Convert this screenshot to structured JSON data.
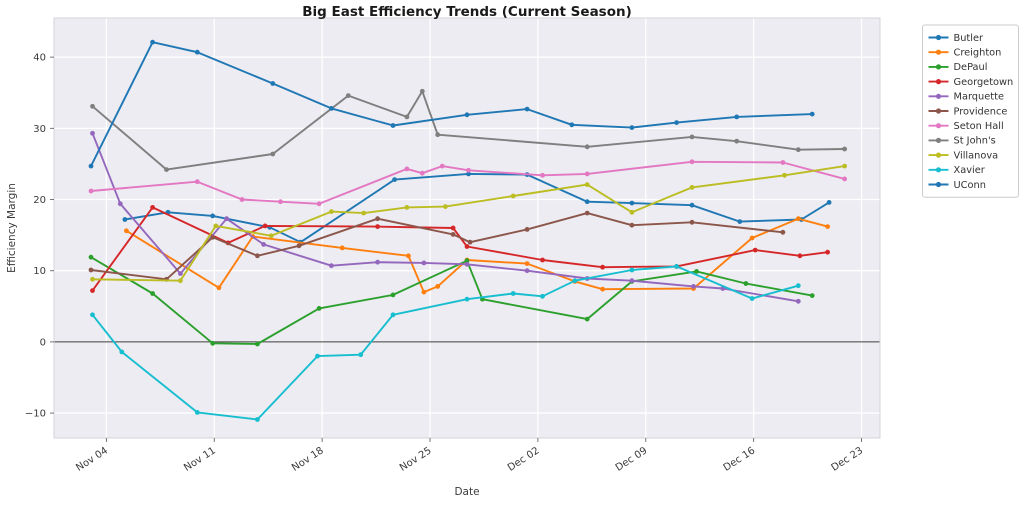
{
  "chart_data": {
    "type": "line",
    "title": "Big East Efficiency Trends (Current Season)",
    "xlabel": "Date",
    "ylabel": "Efficiency Margin",
    "legend_position": "outside-right",
    "grid": true,
    "zero_line": true,
    "xlim": [
      -2.4,
      51.2
    ],
    "ylim": [
      -13.5,
      45.5
    ],
    "x_unit_note": "x = days since Nov 03",
    "x_ticks": [
      {
        "day": 1,
        "label": "Nov 04"
      },
      {
        "day": 8,
        "label": "Nov 11"
      },
      {
        "day": 15,
        "label": "Nov 18"
      },
      {
        "day": 22,
        "label": "Nov 25"
      },
      {
        "day": 29,
        "label": "Dec 02"
      },
      {
        "day": 36,
        "label": "Dec 09"
      },
      {
        "day": 43,
        "label": "Dec 16"
      },
      {
        "day": 50,
        "label": "Dec 23"
      }
    ],
    "y_ticks": [
      {
        "value": -10,
        "label": "−10"
      },
      {
        "value": 0,
        "label": "0"
      },
      {
        "value": 10,
        "label": "10"
      },
      {
        "value": 20,
        "label": "20"
      },
      {
        "value": 30,
        "label": "30"
      },
      {
        "value": 40,
        "label": "40"
      }
    ],
    "style": {
      "plot_bg": "#ececf2",
      "grid_color": "#ffffff",
      "zero_line_color": "#3a3a3a",
      "border_color": "#d4d4dc",
      "legend_bg": "#ffffff",
      "legend_border": "#cccccc"
    },
    "series": [
      {
        "name": "Butler",
        "color": "#1f77b4",
        "points": [
          [
            2.2,
            17.2
          ],
          [
            5,
            18.2
          ],
          [
            7.9,
            17.7
          ],
          [
            11.6,
            16.1
          ],
          [
            13.6,
            14.0
          ],
          [
            19.7,
            22.8
          ],
          [
            24.5,
            23.6
          ],
          [
            28.3,
            23.5
          ],
          [
            32.2,
            19.7
          ],
          [
            35.1,
            19.5
          ],
          [
            39,
            19.2
          ],
          [
            42.1,
            16.9
          ],
          [
            46.1,
            17.2
          ],
          [
            47.9,
            19.6
          ]
        ]
      },
      {
        "name": "Creighton",
        "color": "#ff7f0e",
        "points": [
          [
            2.3,
            15.6
          ],
          [
            8.3,
            7.6
          ],
          [
            10.5,
            14.8
          ],
          [
            16.3,
            13.2
          ],
          [
            20.6,
            12.1
          ],
          [
            21.6,
            7.0
          ],
          [
            22.5,
            7.8
          ],
          [
            24.4,
            11.5
          ],
          [
            28.3,
            11.0
          ],
          [
            31.4,
            8.5
          ],
          [
            33.2,
            7.4
          ],
          [
            39.1,
            7.5
          ],
          [
            42.9,
            14.6
          ],
          [
            45.9,
            17.3
          ],
          [
            47.8,
            16.2
          ]
        ]
      },
      {
        "name": "DePaul",
        "color": "#2ca02c",
        "points": [
          [
            0,
            11.9
          ],
          [
            4,
            6.8
          ],
          [
            7.9,
            -0.2
          ],
          [
            10.8,
            -0.3
          ],
          [
            14.8,
            4.7
          ],
          [
            19.6,
            6.6
          ],
          [
            24.4,
            11.4
          ],
          [
            25.4,
            6.0
          ],
          [
            32.2,
            3.2
          ],
          [
            35.1,
            8.5
          ],
          [
            39.3,
            9.9
          ],
          [
            42.5,
            8.2
          ],
          [
            46.8,
            6.5
          ]
        ]
      },
      {
        "name": "Georgetown",
        "color": "#d62728",
        "points": [
          [
            0.1,
            7.2
          ],
          [
            4,
            18.9
          ],
          [
            8.9,
            13.9
          ],
          [
            11.3,
            16.3
          ],
          [
            18.6,
            16.2
          ],
          [
            23.5,
            16.0
          ],
          [
            24.4,
            13.4
          ],
          [
            29.3,
            11.5
          ],
          [
            33.2,
            10.5
          ],
          [
            38,
            10.6
          ],
          [
            43.1,
            12.9
          ],
          [
            46,
            12.1
          ],
          [
            47.8,
            12.6
          ]
        ]
      },
      {
        "name": "Marquette",
        "color": "#9467bd",
        "points": [
          [
            0.1,
            29.3
          ],
          [
            1.9,
            19.4
          ],
          [
            5.8,
            9.6
          ],
          [
            8.8,
            17.3
          ],
          [
            11.2,
            13.7
          ],
          [
            15.6,
            10.7
          ],
          [
            18.6,
            11.2
          ],
          [
            21.6,
            11.1
          ],
          [
            24.4,
            10.9
          ],
          [
            28.3,
            10.0
          ],
          [
            32.2,
            8.9
          ],
          [
            35.1,
            8.6
          ],
          [
            39.1,
            7.8
          ],
          [
            41,
            7.5
          ],
          [
            45.9,
            5.7
          ]
        ]
      },
      {
        "name": "Providence",
        "color": "#8c564b",
        "points": [
          [
            0,
            10.1
          ],
          [
            4.9,
            8.8
          ],
          [
            7.9,
            14.7
          ],
          [
            10.8,
            12.1
          ],
          [
            13.5,
            13.5
          ],
          [
            18.6,
            17.3
          ],
          [
            23.5,
            15.1
          ],
          [
            24.6,
            14.0
          ],
          [
            28.3,
            15.8
          ],
          [
            32.2,
            18.1
          ],
          [
            35.1,
            16.4
          ],
          [
            39,
            16.8
          ],
          [
            44.9,
            15.4
          ]
        ]
      },
      {
        "name": "Seton Hall",
        "color": "#e377c2",
        "points": [
          [
            0,
            21.2
          ],
          [
            6.9,
            22.5
          ],
          [
            9.8,
            20.0
          ],
          [
            12.3,
            19.7
          ],
          [
            14.8,
            19.4
          ],
          [
            20.5,
            24.3
          ],
          [
            21.5,
            23.7
          ],
          [
            22.8,
            24.7
          ],
          [
            24.5,
            24.1
          ],
          [
            29.3,
            23.4
          ],
          [
            32.2,
            23.6
          ],
          [
            39,
            25.3
          ],
          [
            44.9,
            25.2
          ],
          [
            48.9,
            22.9
          ]
        ]
      },
      {
        "name": "St John's",
        "color": "#7f7f7f",
        "points": [
          [
            0.1,
            33.1
          ],
          [
            4.9,
            24.2
          ],
          [
            11.8,
            26.4
          ],
          [
            16.7,
            34.6
          ],
          [
            20.5,
            31.6
          ],
          [
            21.5,
            35.2
          ],
          [
            22.5,
            29.1
          ],
          [
            32.2,
            27.4
          ],
          [
            39,
            28.8
          ],
          [
            41.9,
            28.2
          ],
          [
            45.9,
            27.0
          ],
          [
            48.9,
            27.1
          ]
        ]
      },
      {
        "name": "Villanova",
        "color": "#bcbd22",
        "points": [
          [
            0.1,
            8.8
          ],
          [
            5.8,
            8.6
          ],
          [
            8.1,
            16.3
          ],
          [
            11.7,
            14.9
          ],
          [
            15.6,
            18.3
          ],
          [
            17.7,
            18.1
          ],
          [
            20.5,
            18.9
          ],
          [
            23,
            19.0
          ],
          [
            27.4,
            20.5
          ],
          [
            32.2,
            22.1
          ],
          [
            35.1,
            18.2
          ],
          [
            39,
            21.7
          ],
          [
            45,
            23.4
          ],
          [
            48.9,
            24.7
          ]
        ]
      },
      {
        "name": "Xavier",
        "color": "#17becf",
        "points": [
          [
            0.1,
            3.8
          ],
          [
            2,
            -1.4
          ],
          [
            6.9,
            -9.9
          ],
          [
            10.8,
            -10.9
          ],
          [
            14.7,
            -2.0
          ],
          [
            17.5,
            -1.8
          ],
          [
            19.6,
            3.8
          ],
          [
            24.4,
            6.0
          ],
          [
            27.4,
            6.8
          ],
          [
            29.3,
            6.4
          ],
          [
            31.4,
            8.6
          ],
          [
            35.1,
            10.1
          ],
          [
            38,
            10.6
          ],
          [
            42.9,
            6.1
          ],
          [
            45.9,
            7.9
          ]
        ]
      },
      {
        "name": "UConn",
        "color": "#1f77b4",
        "points": [
          [
            0,
            24.7
          ],
          [
            4,
            42.1
          ],
          [
            6.9,
            40.7
          ],
          [
            11.8,
            36.3
          ],
          [
            15.6,
            32.8
          ],
          [
            19.6,
            30.4
          ],
          [
            24.4,
            31.9
          ],
          [
            28.3,
            32.7
          ],
          [
            31.2,
            30.5
          ],
          [
            35.1,
            30.1
          ],
          [
            38,
            30.8
          ],
          [
            41.9,
            31.6
          ],
          [
            46.8,
            32.0
          ]
        ]
      }
    ]
  }
}
